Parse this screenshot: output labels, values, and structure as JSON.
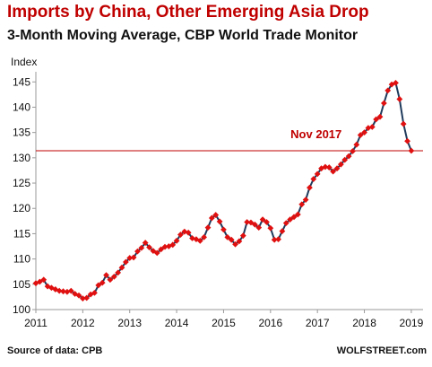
{
  "header": {
    "title": "Imports by China, Other Emerging Asia Drop",
    "subtitle": "3-Month Moving Average, CBP World Trade Monitor"
  },
  "footer": {
    "source": "Source of data: CPB",
    "brand": "WOLFSTREET.com"
  },
  "colors": {
    "title": "#c00000",
    "line": "#1f3b5c",
    "marker": "#e01010",
    "reference_line": "#c00000"
  },
  "chart_data": {
    "type": "line",
    "title": "Imports by China, Other Emerging Asia Drop",
    "subtitle": "3-Month Moving Average, CBP World Trade Monitor",
    "ylabel": "Index",
    "xlabel": "",
    "ylim": [
      100,
      147
    ],
    "yticks": [
      100,
      105,
      110,
      115,
      120,
      125,
      130,
      135,
      140,
      145
    ],
    "xlim": [
      2011,
      2019.25
    ],
    "xticks": [
      2011,
      2012,
      2013,
      2014,
      2015,
      2016,
      2017,
      2018,
      2019
    ],
    "grid": false,
    "legend": "none",
    "reference_line": {
      "y": 131.4,
      "label": "Nov 2017"
    },
    "series": [
      {
        "x": [
          2011.0,
          2011.083,
          2011.167,
          2011.25,
          2011.333,
          2011.417,
          2011.5,
          2011.583,
          2011.667,
          2011.75,
          2011.833,
          2011.917,
          2012.0,
          2012.083,
          2012.167,
          2012.25,
          2012.333,
          2012.417,
          2012.5,
          2012.583,
          2012.667,
          2012.75,
          2012.833,
          2012.917,
          2013.0,
          2013.083,
          2013.167,
          2013.25,
          2013.333,
          2013.417,
          2013.5,
          2013.583,
          2013.667,
          2013.75,
          2013.833,
          2013.917,
          2014.0,
          2014.083,
          2014.167,
          2014.25,
          2014.333,
          2014.417,
          2014.5,
          2014.583,
          2014.667,
          2014.75,
          2014.833,
          2014.917,
          2015.0,
          2015.083,
          2015.167,
          2015.25,
          2015.333,
          2015.417,
          2015.5,
          2015.583,
          2015.667,
          2015.75,
          2015.833,
          2015.917,
          2016.0,
          2016.083,
          2016.167,
          2016.25,
          2016.333,
          2016.417,
          2016.5,
          2016.583,
          2016.667,
          2016.75,
          2016.833,
          2016.917,
          2017.0,
          2017.083,
          2017.167,
          2017.25,
          2017.333,
          2017.417,
          2017.5,
          2017.583,
          2017.667,
          2017.75,
          2017.833,
          2017.917,
          2018.0,
          2018.083,
          2018.167,
          2018.25,
          2018.333,
          2018.417,
          2018.5,
          2018.583,
          2018.667,
          2018.75,
          2018.833,
          2018.917,
          2019.0
        ],
        "values": [
          105.2,
          105.5,
          105.9,
          104.6,
          104.3,
          104.0,
          103.7,
          103.6,
          103.5,
          103.7,
          103.1,
          102.8,
          102.2,
          102.3,
          103.0,
          103.3,
          104.8,
          105.3,
          106.8,
          105.9,
          106.5,
          107.3,
          108.3,
          109.4,
          110.2,
          110.3,
          111.5,
          112.2,
          113.2,
          112.3,
          111.6,
          111.2,
          111.9,
          112.4,
          112.5,
          112.8,
          113.6,
          114.8,
          115.4,
          115.2,
          114.1,
          113.9,
          113.6,
          114.3,
          116.2,
          118.1,
          118.7,
          117.4,
          115.8,
          114.3,
          113.8,
          112.9,
          113.5,
          114.6,
          117.3,
          117.2,
          116.8,
          116.2,
          117.8,
          117.3,
          116.1,
          113.8,
          113.9,
          115.5,
          117.1,
          117.8,
          118.3,
          118.8,
          120.8,
          121.7,
          124.1,
          125.8,
          126.8,
          127.9,
          128.2,
          128.1,
          127.3,
          127.9,
          128.7,
          129.6,
          130.3,
          131.3,
          132.6,
          134.5,
          135.0,
          135.9,
          136.1,
          137.6,
          138.1,
          140.8,
          143.3,
          144.5,
          144.8,
          141.6,
          136.7,
          133.3,
          131.4
        ]
      }
    ]
  }
}
